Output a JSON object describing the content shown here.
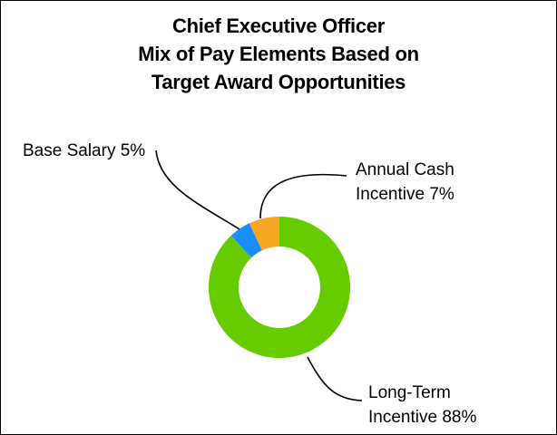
{
  "chart_data": {
    "type": "pie",
    "title": [
      "Chief Executive Officer",
      "Mix of Pay Elements Based on",
      "Target Award Opportunities"
    ],
    "series": [
      {
        "name": "Long-Term Incentive",
        "value": 88,
        "color": "#66cc00",
        "label_lines": [
          "Long-Term",
          "Incentive 88%"
        ]
      },
      {
        "name": "Base Salary",
        "value": 5,
        "color": "#1a8cff",
        "label_lines": [
          "Base Salary 5%"
        ]
      },
      {
        "name": "Annual Cash Incentive",
        "value": 7,
        "color": "#f5a623",
        "label_lines": [
          "Annual Cash",
          "Incentive 7%"
        ]
      }
    ],
    "donut": true
  }
}
